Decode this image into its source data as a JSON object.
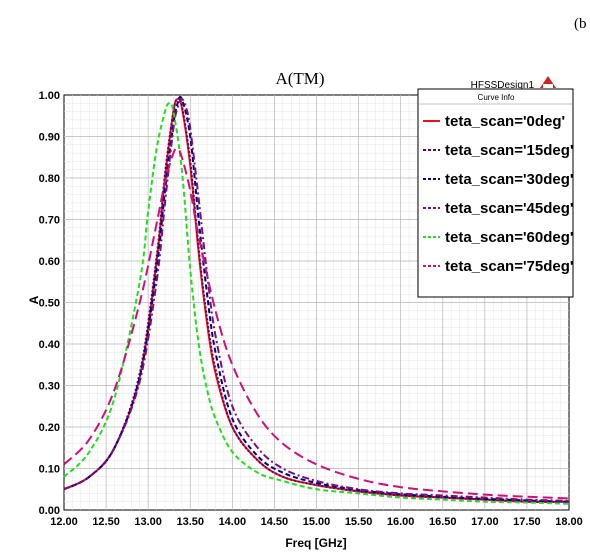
{
  "panel_label": "(b",
  "design_name": "HFSSDesign1",
  "chart_data": {
    "type": "line",
    "title": "A(TM)",
    "xlabel": "Freq [GHz]",
    "ylabel": "A",
    "xlim": [
      12.0,
      18.0
    ],
    "ylim": [
      0.0,
      1.0
    ],
    "x_ticks": [
      "12.00",
      "12.50",
      "13.00",
      "13.50",
      "14.00",
      "14.50",
      "15.00",
      "15.50",
      "16.00",
      "16.50",
      "17.00",
      "17.50",
      "18.00"
    ],
    "y_ticks": [
      "0.00",
      "0.10",
      "0.20",
      "0.30",
      "0.40",
      "0.50",
      "0.60",
      "0.70",
      "0.80",
      "0.90",
      "1.00"
    ],
    "grid": true,
    "legend_title": "Curve Info",
    "legend_position": "top-right",
    "series": [
      {
        "name": "teta_scan='0deg'",
        "color": "#ee1111",
        "dash": "solid",
        "x": [
          12.0,
          12.3,
          12.6,
          12.9,
          13.1,
          13.2,
          13.3,
          13.35,
          13.4,
          13.5,
          13.6,
          13.7,
          13.8,
          14.0,
          14.3,
          14.6,
          15.0,
          15.5,
          16.0,
          16.5,
          17.0,
          17.5,
          18.0
        ],
        "y": [
          0.05,
          0.08,
          0.15,
          0.32,
          0.6,
          0.8,
          0.96,
          0.99,
          0.97,
          0.83,
          0.62,
          0.45,
          0.33,
          0.2,
          0.12,
          0.08,
          0.06,
          0.045,
          0.035,
          0.03,
          0.025,
          0.02,
          0.02
        ]
      },
      {
        "name": "teta_scan='15deg'",
        "color": "#660066",
        "dash": "dot",
        "x": [
          12.0,
          12.3,
          12.6,
          12.9,
          13.1,
          13.2,
          13.3,
          13.35,
          13.4,
          13.5,
          13.6,
          13.7,
          13.8,
          14.0,
          14.3,
          14.6,
          15.0,
          15.5,
          16.0,
          16.5,
          17.0,
          17.5,
          18.0
        ],
        "y": [
          0.05,
          0.08,
          0.15,
          0.33,
          0.61,
          0.81,
          0.96,
          0.99,
          0.975,
          0.84,
          0.63,
          0.46,
          0.34,
          0.2,
          0.12,
          0.08,
          0.06,
          0.045,
          0.035,
          0.03,
          0.025,
          0.02,
          0.02
        ]
      },
      {
        "name": "teta_scan='30deg'",
        "color": "#000088",
        "dash": "dash",
        "x": [
          12.0,
          12.3,
          12.6,
          12.9,
          13.1,
          13.2,
          13.3,
          13.35,
          13.4,
          13.5,
          13.6,
          13.7,
          13.8,
          14.0,
          14.3,
          14.6,
          15.0,
          15.5,
          16.0,
          16.5,
          17.0,
          17.5,
          18.0
        ],
        "y": [
          0.05,
          0.08,
          0.15,
          0.32,
          0.58,
          0.77,
          0.93,
          0.98,
          0.99,
          0.9,
          0.7,
          0.52,
          0.38,
          0.22,
          0.13,
          0.09,
          0.065,
          0.048,
          0.038,
          0.032,
          0.027,
          0.023,
          0.02
        ]
      },
      {
        "name": "teta_scan='45deg'",
        "color": "#771177",
        "dash": "dashdot",
        "x": [
          12.0,
          12.3,
          12.6,
          12.9,
          13.1,
          13.2,
          13.3,
          13.35,
          13.4,
          13.45,
          13.5,
          13.6,
          13.7,
          13.8,
          14.0,
          14.3,
          14.6,
          15.0,
          15.5,
          16.0,
          16.5,
          17.0,
          17.5,
          18.0
        ],
        "y": [
          0.05,
          0.08,
          0.15,
          0.31,
          0.55,
          0.74,
          0.92,
          0.97,
          0.99,
          0.97,
          0.92,
          0.75,
          0.57,
          0.42,
          0.25,
          0.15,
          0.1,
          0.07,
          0.05,
          0.04,
          0.035,
          0.03,
          0.025,
          0.022
        ]
      },
      {
        "name": "teta_scan='60deg'",
        "color": "#22dd22",
        "dash": "dash",
        "x": [
          12.0,
          12.3,
          12.6,
          12.9,
          13.0,
          13.1,
          13.2,
          13.25,
          13.3,
          13.4,
          13.5,
          13.6,
          13.7,
          13.8,
          14.0,
          14.3,
          14.6,
          15.0,
          15.5,
          16.0,
          16.5,
          17.0,
          17.5,
          18.0
        ],
        "y": [
          0.08,
          0.14,
          0.27,
          0.55,
          0.72,
          0.87,
          0.96,
          0.98,
          0.96,
          0.82,
          0.58,
          0.4,
          0.29,
          0.22,
          0.14,
          0.09,
          0.07,
          0.05,
          0.04,
          0.03,
          0.025,
          0.02,
          0.018,
          0.015
        ]
      },
      {
        "name": "teta_scan='75deg'",
        "color": "#cc1177",
        "dash": "longdash",
        "x": [
          12.0,
          12.3,
          12.6,
          12.9,
          13.1,
          13.2,
          13.3,
          13.35,
          13.4,
          13.5,
          13.6,
          13.8,
          14.0,
          14.3,
          14.6,
          15.0,
          15.5,
          16.0,
          16.5,
          17.0,
          17.5,
          18.0
        ],
        "y": [
          0.11,
          0.17,
          0.29,
          0.5,
          0.69,
          0.79,
          0.86,
          0.87,
          0.85,
          0.77,
          0.66,
          0.48,
          0.35,
          0.23,
          0.16,
          0.11,
          0.075,
          0.055,
          0.045,
          0.037,
          0.032,
          0.028
        ]
      }
    ]
  }
}
